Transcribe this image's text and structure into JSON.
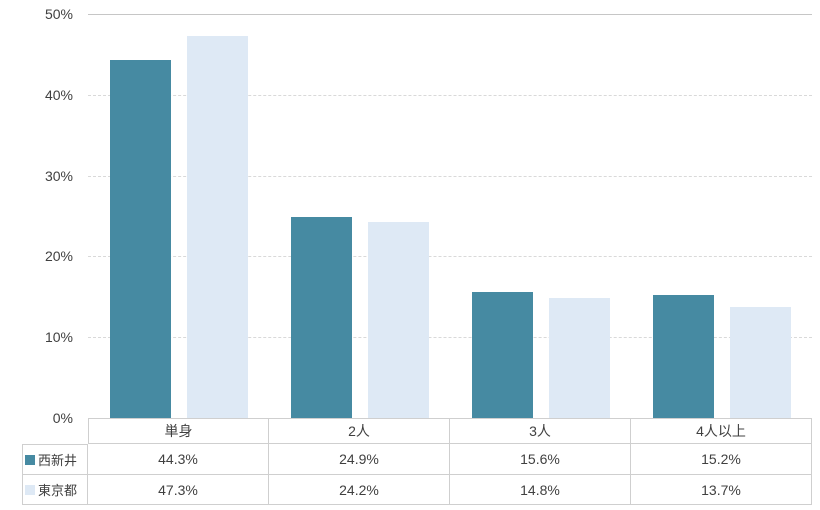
{
  "chart_data": {
    "type": "bar",
    "title": "",
    "xlabel": "",
    "ylabel": "",
    "categories": [
      "単身",
      "2人",
      "3人",
      "4人以上"
    ],
    "series": [
      {
        "name": "西新井",
        "color": "#468AA2",
        "values": [
          44.3,
          24.9,
          15.6,
          15.2
        ],
        "display": [
          "44.3%",
          "24.9%",
          "15.6%",
          "15.2%"
        ]
      },
      {
        "name": "東京都",
        "color": "#DEE9F5",
        "values": [
          47.3,
          24.2,
          14.8,
          13.7
        ],
        "display": [
          "47.3%",
          "24.2%",
          "14.8%",
          "13.7%"
        ]
      }
    ],
    "ylim": [
      0,
      50
    ],
    "ytick_step": 10,
    "yticks_top_down": [
      "50%",
      "40%",
      "30%",
      "20%",
      "10%",
      "0%"
    ],
    "grid": true,
    "gridline_style": "dashed",
    "legend_position": "table-left",
    "colors": {
      "gridline": "#d9d9d9",
      "gridline_top": "#c6c6c6",
      "table_border": "#cfcfcf",
      "text": "#404040"
    }
  }
}
